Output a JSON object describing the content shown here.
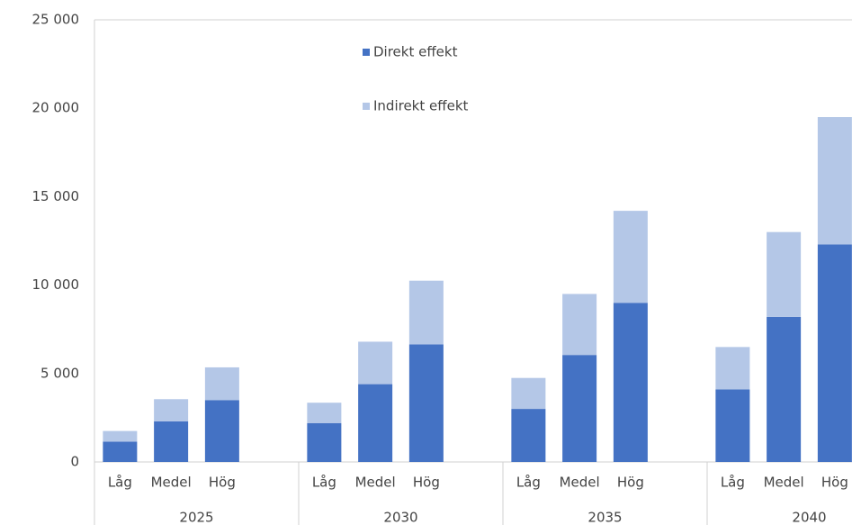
{
  "chart_data": {
    "type": "stacked_bar",
    "groups": [
      "2025",
      "2030",
      "2035",
      "2040"
    ],
    "categories": [
      "Låg",
      "Medel",
      "Hög",
      "Låg",
      "Medel",
      "Hög",
      "Låg",
      "Medel",
      "Hög",
      "Låg",
      "Medel",
      "Hög"
    ],
    "series": [
      {
        "name": "Direkt effekt",
        "color": "#4472c4",
        "values": [
          1150,
          2300,
          3500,
          2200,
          4400,
          6650,
          3000,
          6050,
          9000,
          4100,
          8200,
          12300
        ]
      },
      {
        "name": "Indirekt effekt",
        "color": "#b4c7e7",
        "values": [
          600,
          1250,
          1850,
          1150,
          2400,
          3600,
          1750,
          3450,
          5200,
          2400,
          4800,
          7200
        ]
      }
    ],
    "ylim": [
      0,
      25000
    ],
    "yticks": [
      0,
      {
        "value": 5000,
        "label": "5 000"
      },
      {
        "value": 10000,
        "label": "10 000"
      },
      {
        "value": 15000,
        "label": "15 000"
      },
      {
        "value": 20000,
        "label": "20 000"
      },
      {
        "value": 25000,
        "label": "25 000"
      }
    ],
    "grid": false
  }
}
